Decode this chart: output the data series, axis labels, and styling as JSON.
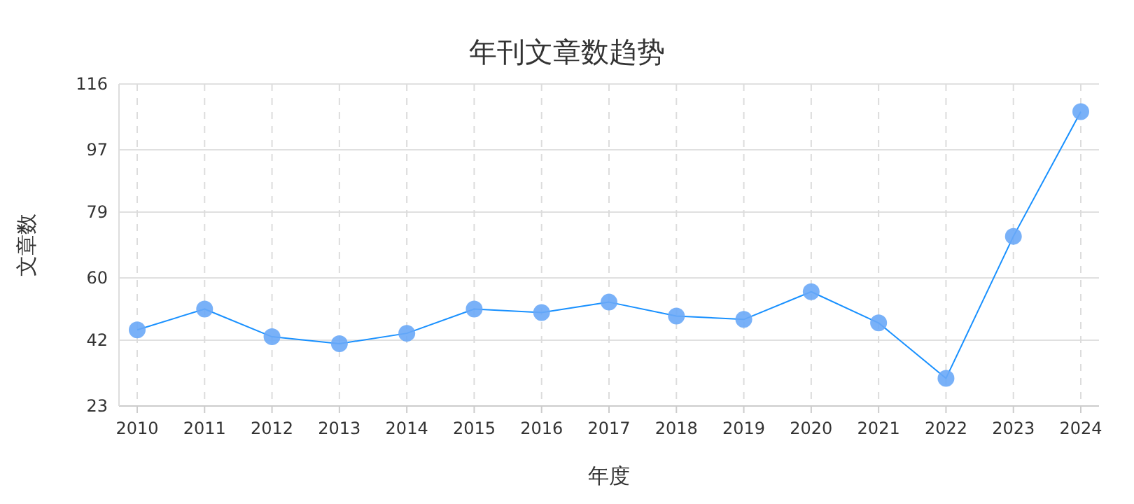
{
  "chart_data": {
    "type": "line",
    "title": "年刊文章数趋势",
    "xlabel": "年度",
    "ylabel": "文章数",
    "categories": [
      "2010",
      "2011",
      "2012",
      "2013",
      "2014",
      "2015",
      "2016",
      "2017",
      "2018",
      "2019",
      "2020",
      "2021",
      "2022",
      "2023",
      "2024"
    ],
    "series": [
      {
        "color": "#1890ff",
        "values": [
          45,
          51,
          43,
          41,
          44,
          51,
          50,
          53,
          49,
          48,
          56,
          47,
          31,
          72,
          108
        ]
      }
    ],
    "ylim": [
      23,
      116
    ],
    "yticks": [
      23,
      42,
      60,
      79,
      97,
      116
    ],
    "grid": true,
    "marker": "circle",
    "line_style": "solid"
  }
}
